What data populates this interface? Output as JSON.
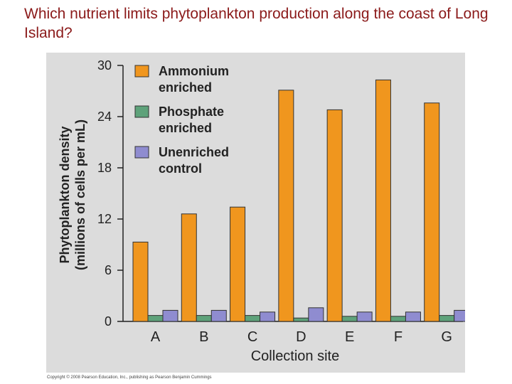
{
  "slide": {
    "title": "Which nutrient limits phytoplankton production along the coast of Long Island?",
    "copyright": "Copyright © 2008 Pearson Education, Inc., publishing as Pearson Benjamin Cummings"
  },
  "chart_data": {
    "type": "bar",
    "categories": [
      "A",
      "B",
      "C",
      "D",
      "E",
      "F",
      "G"
    ],
    "series": [
      {
        "name": "Ammonium enriched",
        "name_lines": [
          "Ammonium",
          "enriched"
        ],
        "color": "#f0961e",
        "values": [
          9.3,
          12.6,
          13.4,
          27.1,
          24.8,
          28.3,
          25.6
        ]
      },
      {
        "name": "Phosphate enriched",
        "name_lines": [
          "Phosphate",
          "enriched"
        ],
        "color": "#5ea27a",
        "values": [
          0.7,
          0.7,
          0.7,
          0.4,
          0.6,
          0.6,
          0.7
        ]
      },
      {
        "name": "Unenriched control",
        "name_lines": [
          "Unenriched",
          "control"
        ],
        "color": "#8f8cd0",
        "values": [
          1.3,
          1.3,
          1.1,
          1.6,
          1.1,
          1.1,
          1.3
        ]
      }
    ],
    "title": "",
    "xlabel": "Collection site",
    "ylabel": "Phytoplankton density (millions of cells per mL)",
    "ylabel_lines": [
      "Phytoplankton density",
      "(millions of cells per mL)"
    ],
    "ylim": [
      0,
      30
    ],
    "yticks": [
      0,
      6,
      12,
      18,
      24,
      30
    ],
    "grid": false,
    "legend": "top-left"
  }
}
